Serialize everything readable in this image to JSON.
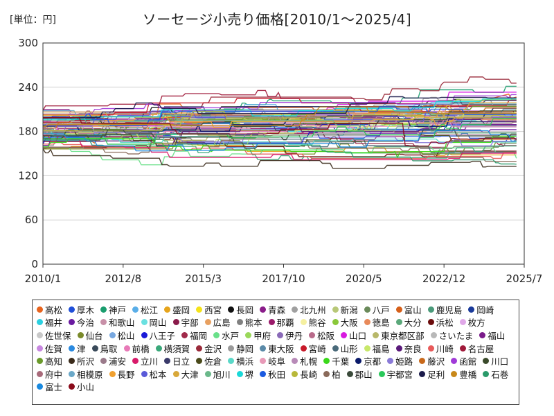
{
  "unit_label": "[単位：円]",
  "chart_data": {
    "type": "line",
    "title": "ソーセージ小売り価格[2010/1～2025/4]",
    "xlabel": "",
    "ylabel": "",
    "x_ticks": [
      "2010/1",
      "2012/8",
      "2015/3",
      "2017/10",
      "2020/5",
      "2022/12",
      "2025/7"
    ],
    "xlim": [
      "2010/1",
      "2025/7"
    ],
    "ylim": [
      0,
      300
    ],
    "y_ticks": [
      0,
      60,
      120,
      180,
      240,
      300
    ],
    "grid": "y",
    "legend_position": "bottom",
    "series": [
      {
        "name": "高松",
        "color": "#e8641e"
      },
      {
        "name": "厚木",
        "color": "#1f4fd8"
      },
      {
        "name": "神戸",
        "color": "#1a9d6e"
      },
      {
        "name": "松江",
        "color": "#5aaee8"
      },
      {
        "name": "盛岡",
        "color": "#e6a41c"
      },
      {
        "name": "西宮",
        "color": "#f5e31a"
      },
      {
        "name": "長岡",
        "color": "#111111"
      },
      {
        "name": "青森",
        "color": "#8a1c8a"
      },
      {
        "name": "北九州",
        "color": "#a0a0a0"
      },
      {
        "name": "新潟",
        "color": "#b8c878"
      },
      {
        "name": "八戸",
        "color": "#6a8a5a"
      },
      {
        "name": "富山",
        "color": "#d6601a"
      },
      {
        "name": "鹿児島",
        "color": "#4a9a7a"
      },
      {
        "name": "岡崎",
        "color": "#1a3a9a"
      },
      {
        "name": "福井",
        "color": "#2ad0e0"
      },
      {
        "name": "今治",
        "color": "#6a1aa0"
      },
      {
        "name": "和歌山",
        "color": "#c890a8"
      },
      {
        "name": "岡山",
        "color": "#6ae0e0"
      },
      {
        "name": "宇部",
        "color": "#8a1a4a"
      },
      {
        "name": "広島",
        "color": "#e8a060"
      },
      {
        "name": "熊本",
        "color": "#808080"
      },
      {
        "name": "那覇",
        "color": "#9a1a6a"
      },
      {
        "name": "熊谷",
        "color": "#f5f0a0"
      },
      {
        "name": "大阪",
        "color": "#8ac83a"
      },
      {
        "name": "徳島",
        "color": "#e88a5a"
      },
      {
        "name": "大分",
        "color": "#5aa87a"
      },
      {
        "name": "浜松",
        "color": "#6a0a0a"
      },
      {
        "name": "枚方",
        "color": "#e0a8e8"
      },
      {
        "name": "佐世保",
        "color": "#c8c8c8"
      },
      {
        "name": "仙台",
        "color": "#7a8a2a"
      },
      {
        "name": "松山",
        "color": "#78a8e0"
      },
      {
        "name": "八王子",
        "color": "#1a1ad8"
      },
      {
        "name": "福岡",
        "color": "#a02a4a"
      },
      {
        "name": "水戸",
        "color": "#6ae08a"
      },
      {
        "name": "甲府",
        "color": "#9ad85a"
      },
      {
        "name": "伊丹",
        "color": "#8a6ab8"
      },
      {
        "name": "松阪",
        "color": "#b86a8a"
      },
      {
        "name": "山口",
        "color": "#d81ae0"
      },
      {
        "name": "東京都区部",
        "color": "#b8b86a"
      },
      {
        "name": "さいたま",
        "color": "#b8b8b8"
      },
      {
        "name": "福山",
        "color": "#7a1a8a"
      },
      {
        "name": "佐賀",
        "color": "#c888e0"
      },
      {
        "name": "津",
        "color": "#2a8ae0"
      },
      {
        "name": "鳥取",
        "color": "#3a4a5a"
      },
      {
        "name": "前橋",
        "color": "#e87ab8"
      },
      {
        "name": "横須賀",
        "color": "#3aa87a"
      },
      {
        "name": "金沢",
        "color": "#9a2a3a"
      },
      {
        "name": "静岡",
        "color": "#9a9a9a"
      },
      {
        "name": "東大阪",
        "color": "#5a8aa8"
      },
      {
        "name": "宮崎",
        "color": "#c81a2a"
      },
      {
        "name": "山形",
        "color": "#4a6a7a"
      },
      {
        "name": "福島",
        "color": "#c8e86a"
      },
      {
        "name": "奈良",
        "color": "#5a1a7a"
      },
      {
        "name": "川崎",
        "color": "#e85a5a"
      },
      {
        "name": "名古屋",
        "color": "#a01a3a"
      },
      {
        "name": "高知",
        "color": "#6a9a2a"
      },
      {
        "name": "所沢",
        "color": "#3a2a1a"
      },
      {
        "name": "浦安",
        "color": "#9a7a8a"
      },
      {
        "name": "立川",
        "color": "#d81a6a"
      },
      {
        "name": "日立",
        "color": "#3a3a6a"
      },
      {
        "name": "佐倉",
        "color": "#4a4a1a"
      },
      {
        "name": "横浜",
        "color": "#5ad8c8"
      },
      {
        "name": "岐阜",
        "color": "#e89ab8"
      },
      {
        "name": "札幌",
        "color": "#b88ab8"
      },
      {
        "name": "千葉",
        "color": "#3ad81a"
      },
      {
        "name": "京都",
        "color": "#0a1a6a"
      },
      {
        "name": "姫路",
        "color": "#8a7ad8"
      },
      {
        "name": "藤沢",
        "color": "#c8681a"
      },
      {
        "name": "函館",
        "color": "#a03ad8"
      },
      {
        "name": "川口",
        "color": "#3a4a2a"
      },
      {
        "name": "府中",
        "color": "#a86a7a"
      },
      {
        "name": "相模原",
        "color": "#6aa8c8"
      },
      {
        "name": "長野",
        "color": "#f0a030"
      },
      {
        "name": "松本",
        "color": "#5a5ad8"
      },
      {
        "name": "大津",
        "color": "#d8a83a"
      },
      {
        "name": "旭川",
        "color": "#6ab88a"
      },
      {
        "name": "堺",
        "color": "#1ad8d8"
      },
      {
        "name": "秋田",
        "color": "#1a5ae0"
      },
      {
        "name": "長崎",
        "color": "#b8b83a"
      },
      {
        "name": "柏",
        "color": "#8a6a5a"
      },
      {
        "name": "郡山",
        "color": "#3a4a3a"
      },
      {
        "name": "宇都宮",
        "color": "#2ac85a"
      },
      {
        "name": "足利",
        "color": "#1a1a4a"
      },
      {
        "name": "豊橋",
        "color": "#c8881a"
      },
      {
        "name": "石巻",
        "color": "#2a9a6a"
      },
      {
        "name": "富士",
        "color": "#1a8ae0"
      },
      {
        "name": "小山",
        "color": "#8a0a1a"
      }
    ]
  }
}
